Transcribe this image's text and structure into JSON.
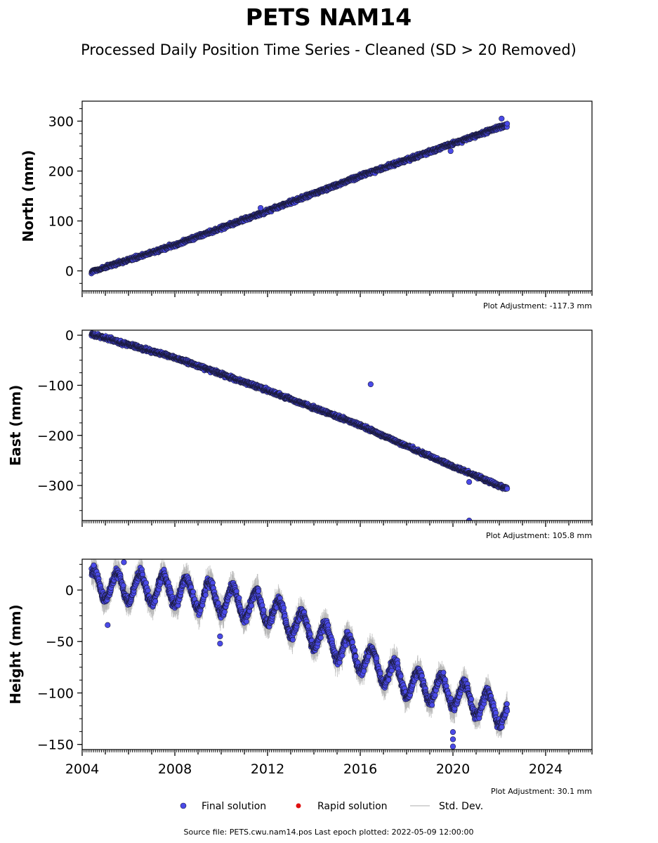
{
  "title": "PETS NAM14",
  "subtitle": "Processed Daily Position Time Series - Cleaned (SD > 20 Removed)",
  "legend": {
    "final": "Final solution",
    "rapid": "Rapid solution",
    "std": "Std. Dev."
  },
  "footer": "Source file: PETS.cwu.nam14.pos  Last epoch plotted: 2022-05-09 12:00:00",
  "colors": {
    "final_fill": "#4a4ae8",
    "final_edge": "#1a1a3a",
    "rapid": "#e01010",
    "std": "#b4b4b4"
  },
  "chart_data": [
    {
      "type": "scatter",
      "ylabel": "North (mm)",
      "adjustment": "Plot Adjustment: -117.3 mm",
      "xlim": [
        2004.0,
        2026.0
      ],
      "ylim": [
        -40,
        340
      ],
      "yticks": [
        0,
        100,
        200,
        300
      ],
      "y_minor_step": 25,
      "show_xticklabels": false,
      "trend": [
        [
          2004.4,
          -2
        ],
        [
          2008.0,
          52
        ],
        [
          2012.0,
          120
        ],
        [
          2016.0,
          190
        ],
        [
          2020.0,
          255
        ],
        [
          2022.35,
          293
        ]
      ],
      "outliers": [
        [
          2022.1,
          305
        ],
        [
          2019.9,
          240
        ],
        [
          2011.7,
          126
        ]
      ],
      "scatter_noise": 3,
      "sd_noise": 5
    },
    {
      "type": "scatter",
      "ylabel": "East (mm)",
      "adjustment": "Plot Adjustment: 105.8 mm",
      "xlim": [
        2004.0,
        2026.0
      ],
      "ylim": [
        -370,
        10
      ],
      "yticks": [
        0,
        -100,
        -200,
        -300
      ],
      "y_minor_step": 25,
      "show_xticklabels": false,
      "trend": [
        [
          2004.4,
          2
        ],
        [
          2008.0,
          -45
        ],
        [
          2012.0,
          -110
        ],
        [
          2016.0,
          -180
        ],
        [
          2020.0,
          -262
        ],
        [
          2022.35,
          -307
        ]
      ],
      "outliers": [
        [
          2016.45,
          -98
        ],
        [
          2020.7,
          -293
        ],
        [
          2020.7,
          -370
        ]
      ],
      "scatter_noise": 3,
      "sd_noise": 5
    },
    {
      "type": "scatter",
      "ylabel": "Height (mm)",
      "adjustment": "Plot Adjustment: 30.1 mm",
      "xlim": [
        2004.0,
        2026.0
      ],
      "ylim": [
        -155,
        30
      ],
      "yticks": [
        0,
        -50,
        -100,
        -150
      ],
      "y_minor_step": 12.5,
      "show_xticklabels": true,
      "xticks": [
        2004,
        2008,
        2012,
        2016,
        2020,
        2024
      ],
      "trend": [
        [
          2004.4,
          5
        ],
        [
          2008.0,
          0
        ],
        [
          2012.0,
          -18
        ],
        [
          2013.0,
          -30
        ],
        [
          2016.0,
          -65
        ],
        [
          2018.0,
          -90
        ],
        [
          2020.0,
          -100
        ],
        [
          2022.35,
          -120
        ]
      ],
      "seasonal_amplitude": 14,
      "outliers": [
        [
          2020.0,
          -152
        ],
        [
          2020.0,
          -145
        ],
        [
          2020.0,
          -138
        ],
        [
          2009.95,
          -52
        ],
        [
          2009.95,
          -45
        ],
        [
          2005.1,
          -34
        ],
        [
          2005.8,
          27
        ],
        [
          2004.5,
          24
        ]
      ],
      "scatter_noise": 4,
      "sd_noise": 9
    }
  ]
}
